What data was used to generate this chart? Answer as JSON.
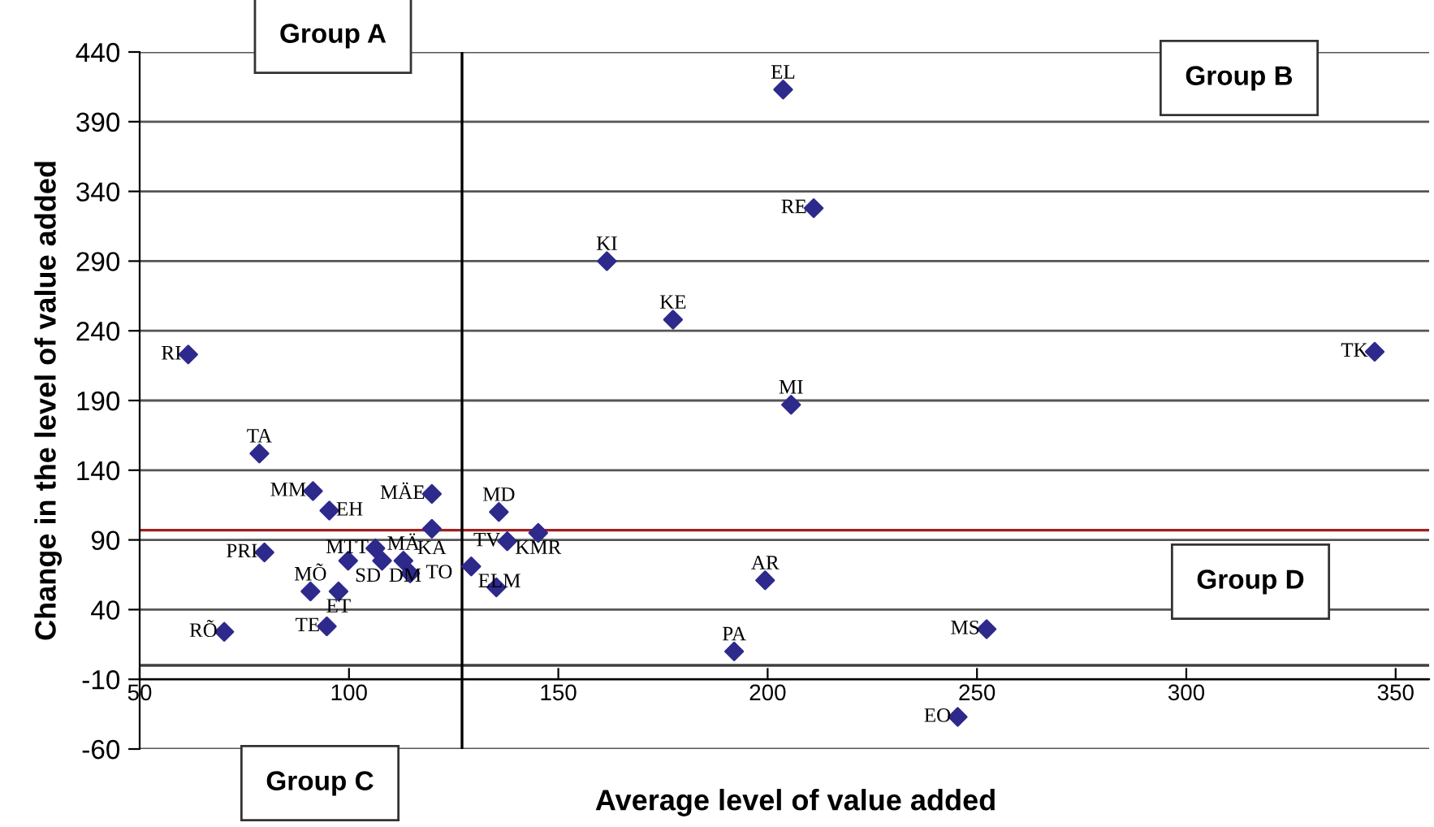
{
  "chart_data": {
    "type": "scatter",
    "xlabel": "Average level of value added",
    "ylabel": "Change in the level of value added",
    "xlim": [
      50,
      358
    ],
    "ylim": [
      -60,
      440
    ],
    "xticks": [
      50,
      100,
      150,
      200,
      250,
      300,
      350
    ],
    "yticks": [
      -60,
      -10,
      40,
      90,
      140,
      190,
      240,
      290,
      340,
      390,
      440
    ],
    "grid": "y",
    "marker": "diamond",
    "legend": false,
    "annotations": [
      "Group A",
      "Group B",
      "Group C",
      "Group D"
    ],
    "ref_lines": [
      {
        "axis": "y",
        "value": 0,
        "label": null,
        "color": "#404040"
      },
      {
        "axis": "y",
        "value": 97,
        "label": null,
        "color": "#a02020"
      },
      {
        "axis": "x",
        "value": 127,
        "label": null,
        "color": "#000000"
      }
    ],
    "series": [
      {
        "name": "RI",
        "color": "#2e2a8c",
        "x": [
          61.6
        ],
        "values": [
          223
        ]
      },
      {
        "name": "EL",
        "color": "#2e2a8c",
        "x": [
          203.7
        ],
        "values": [
          413
        ]
      },
      {
        "name": "RE",
        "color": "#2e2a8c",
        "x": [
          211
        ],
        "values": [
          328
        ]
      },
      {
        "name": "KI",
        "color": "#2e2a8c",
        "x": [
          161.6
        ],
        "values": [
          290
        ]
      },
      {
        "name": "KE",
        "color": "#2e2a8c",
        "x": [
          177.4
        ],
        "values": [
          248
        ]
      },
      {
        "name": "MI",
        "color": "#2e2a8c",
        "x": [
          205.6
        ],
        "values": [
          187
        ]
      },
      {
        "name": "TK",
        "color": "#2e2a8c",
        "x": [
          345
        ],
        "values": [
          225
        ]
      },
      {
        "name": "AR",
        "color": "#2e2a8c",
        "x": [
          199.4
        ],
        "values": [
          61
        ]
      },
      {
        "name": "PA",
        "color": "#2e2a8c",
        "x": [
          192
        ],
        "values": [
          10
        ]
      },
      {
        "name": "MS",
        "color": "#2e2a8c",
        "x": [
          252.3
        ],
        "values": [
          26
        ]
      },
      {
        "name": "EO",
        "color": "#2e2a8c",
        "x": [
          245.4
        ],
        "values": [
          -37
        ]
      },
      {
        "name": "TA",
        "color": "#2e2a8c",
        "x": [
          78.6
        ],
        "values": [
          152
        ]
      },
      {
        "name": "MM",
        "color": "#2e2a8c",
        "x": [
          91.4
        ],
        "values": [
          125
        ]
      },
      {
        "name": "EH",
        "color": "#2e2a8c",
        "x": [
          95.3
        ],
        "values": [
          111
        ]
      },
      {
        "name": "MÄE",
        "color": "#2e2a8c",
        "x": [
          119.8
        ],
        "values": [
          123
        ]
      },
      {
        "name": "KA",
        "color": "#2e2a8c",
        "x": [
          119.8
        ],
        "values": [
          98
        ]
      },
      {
        "name": "MD",
        "color": "#2e2a8c",
        "x": [
          135.8
        ],
        "values": [
          110
        ]
      },
      {
        "name": "KMR",
        "color": "#2e2a8c",
        "x": [
          145.2
        ],
        "values": [
          95
        ]
      },
      {
        "name": "TV",
        "color": "#2e2a8c",
        "x": [
          137.8
        ],
        "values": [
          89
        ]
      },
      {
        "name": "PRI",
        "color": "#2e2a8c",
        "x": [
          79.8
        ],
        "values": [
          81
        ]
      },
      {
        "name": "MTT",
        "color": "#2e2a8c",
        "x": [
          106.3
        ],
        "values": [
          84
        ]
      },
      {
        "name": "SD",
        "color": "#2e2a8c",
        "x": [
          99.8
        ],
        "values": [
          75
        ]
      },
      {
        "name": "DM",
        "color": "#2e2a8c",
        "x": [
          107.9
        ],
        "values": [
          75
        ]
      },
      {
        "name": "MÄ",
        "color": "#2e2a8c",
        "x": [
          113
        ],
        "values": [
          75
        ]
      },
      {
        "name": "TO",
        "color": "#2e2a8c",
        "x": [
          114.6
        ],
        "values": [
          66
        ]
      },
      {
        "name": "ELM",
        "color": "#2e2a8c",
        "x": [
          129.2
        ],
        "values": [
          71
        ]
      },
      {
        "color": "#2e2a8c",
        "x": [
          135.2
        ],
        "values": [
          56
        ]
      },
      {
        "name": "MÕ",
        "color": "#2e2a8c",
        "x": [
          90.8
        ],
        "values": [
          53
        ]
      },
      {
        "name": "ET",
        "color": "#2e2a8c",
        "x": [
          97.5
        ],
        "values": [
          53
        ]
      },
      {
        "name": "TE",
        "color": "#2e2a8c",
        "x": [
          94.7
        ],
        "values": [
          28
        ]
      },
      {
        "name": "RÕ",
        "color": "#2e2a8c",
        "x": [
          70.2
        ],
        "values": [
          24
        ]
      }
    ]
  }
}
